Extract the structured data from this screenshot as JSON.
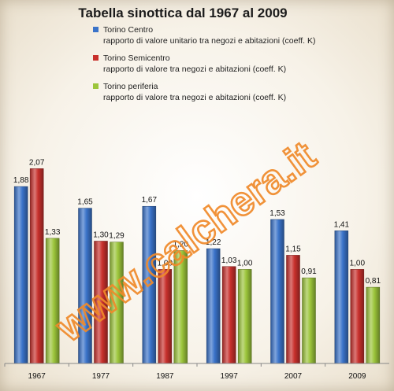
{
  "chart_data": {
    "type": "bar",
    "title": "Tabella sinottica  dal 1967 al 2009",
    "categories": [
      "1967",
      "1977",
      "1987",
      "1997",
      "2007",
      "2009"
    ],
    "series": [
      {
        "name_line1": "Torino Centro",
        "name_line2": "rapporto di valore unitario  tra negozi e abitazioni (coeff. K)",
        "color": "#3a73c9",
        "values": [
          1.88,
          1.65,
          1.67,
          1.22,
          1.53,
          1.41
        ],
        "labels": [
          "1,88",
          "1,65",
          "1,67",
          "1,22",
          "1,53",
          "1,41"
        ]
      },
      {
        "name_line1": "Torino Semicentro",
        "name_line2": "rapporto di valore  tra negozi e abitazioni (coeff. K)",
        "color": "#c8302c",
        "values": [
          2.07,
          1.3,
          1.0,
          1.03,
          1.15,
          1.0
        ],
        "labels": [
          "2,07",
          "1,30",
          "1,00",
          "1,03",
          "1,15",
          "1,00"
        ]
      },
      {
        "name_line1": "Torino periferia",
        "name_line2": "rapporto di valore  tra negozi e abitazioni (coeff. K)",
        "color": "#9cc53b",
        "values": [
          1.33,
          1.29,
          1.2,
          1.0,
          0.91,
          0.81
        ],
        "labels": [
          "1,33",
          "1,29",
          "1,20",
          "1,00",
          "0,91",
          "0,81"
        ]
      }
    ],
    "ylim": [
      0,
      2.47
    ],
    "grid": false,
    "legend_position": "top-right"
  },
  "watermark": "www.calchera.it"
}
